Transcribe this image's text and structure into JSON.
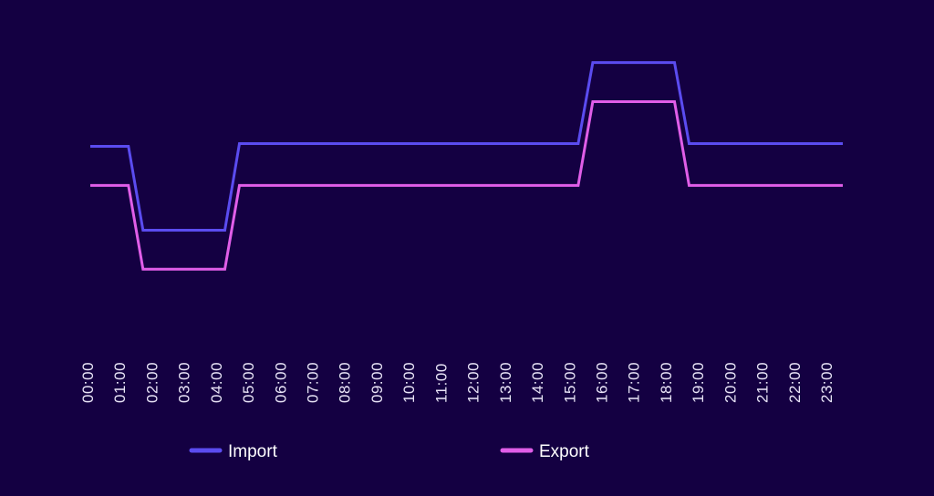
{
  "chart_data": {
    "type": "line",
    "title": "",
    "xlabel": "",
    "ylabel": "",
    "grid": false,
    "legend_placement": "bottom",
    "categories": [
      "00:00",
      "01:00",
      "02:00",
      "03:00",
      "04:00",
      "05:00",
      "06:00",
      "07:00",
      "08:00",
      "09:00",
      "10:00",
      "11:00",
      "12:00",
      "13:00",
      "14:00",
      "15:00",
      "16:00",
      "17:00",
      "18:00",
      "19:00",
      "20:00",
      "21:00",
      "22:00",
      "23:00"
    ],
    "series": [
      {
        "name": "Import",
        "color": "#5b4cf0",
        "values": [
          0.7,
          0.7,
          0.4,
          0.4,
          0.4,
          0.71,
          0.71,
          0.71,
          0.71,
          0.71,
          0.71,
          0.71,
          0.71,
          0.71,
          0.71,
          0.71,
          1.0,
          1.0,
          1.0,
          0.71,
          0.71,
          0.71,
          0.71,
          0.71
        ]
      },
      {
        "name": "Export",
        "color": "#e05ee8",
        "values": [
          0.56,
          0.56,
          0.26,
          0.26,
          0.26,
          0.56,
          0.56,
          0.56,
          0.56,
          0.56,
          0.56,
          0.56,
          0.56,
          0.56,
          0.56,
          0.56,
          0.86,
          0.86,
          0.86,
          0.56,
          0.56,
          0.56,
          0.56,
          0.56
        ]
      }
    ],
    "ylim": [
      0,
      1.1
    ]
  },
  "colors": {
    "background": "#140042",
    "tick_text": "#e9e4f7",
    "legend_text": "#ffffff"
  }
}
